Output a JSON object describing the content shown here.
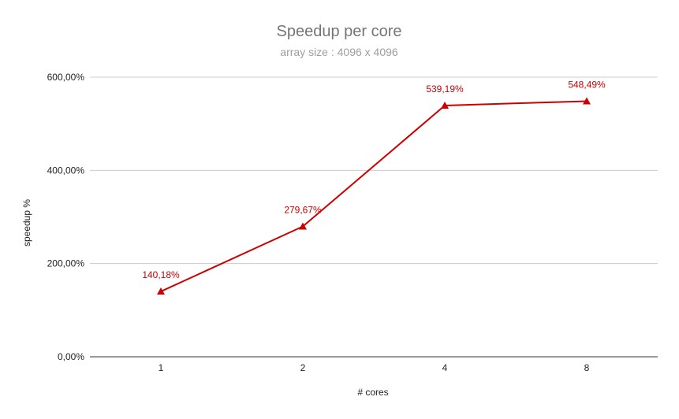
{
  "chart_data": {
    "type": "line",
    "title": "Speedup per core",
    "subtitle": "array size : 4096 x 4096",
    "xlabel": "# cores",
    "ylabel": "speedup %",
    "categories": [
      "1",
      "2",
      "4",
      "8"
    ],
    "series": [
      {
        "values": [
          140.18,
          279.67,
          539.19,
          548.49
        ],
        "labels": [
          "140,18%",
          "279,67%",
          "539,19%",
          "548,49%"
        ],
        "color": "#cc0000",
        "marker": "triangle"
      }
    ],
    "ylim": [
      0,
      600
    ],
    "yticks": [
      0,
      200,
      400,
      600
    ],
    "ytick_labels": [
      "0,00%",
      "200,00%",
      "400,00%",
      "600,00%"
    ],
    "grid": true,
    "legend": "none"
  },
  "colors": {
    "series": "#cc0000",
    "grid": "#cccccc",
    "baseline": "#333333"
  }
}
